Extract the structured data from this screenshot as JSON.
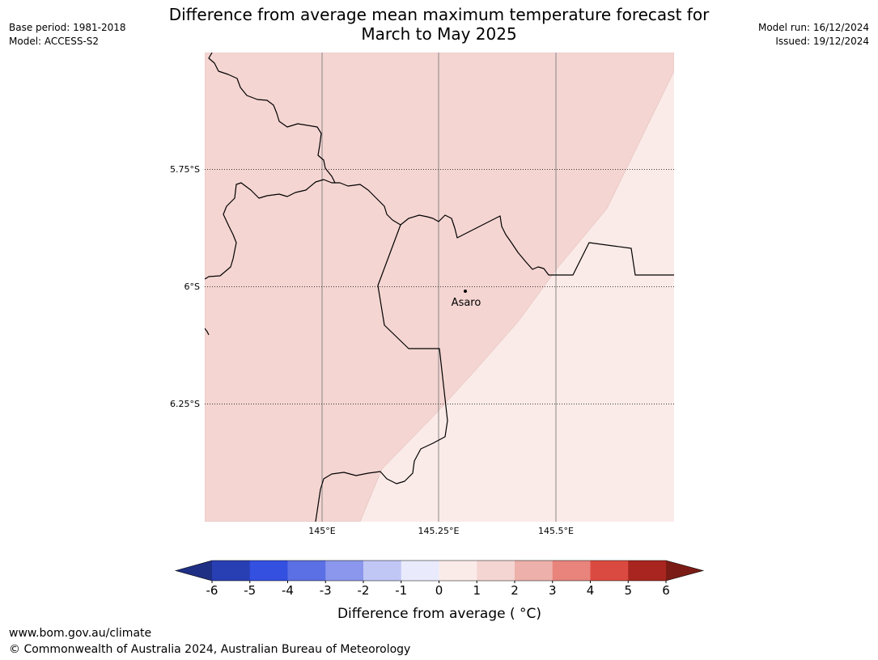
{
  "title": {
    "line1": "Difference from average mean maximum temperature forecast for",
    "line2": "March to May 2025"
  },
  "meta_left": {
    "base_period": "Base period: 1981-2018",
    "model": "Model: ACCESS-S2"
  },
  "meta_right": {
    "model_run": "Model run: 16/12/2024",
    "issued": "Issued: 19/12/2024"
  },
  "map": {
    "lat_labels": [
      "5.75°S",
      "6°S",
      "6.25°S"
    ],
    "lon_labels": [
      "145°E",
      "145.25°E",
      "145.5°E"
    ],
    "place": "Asaro",
    "colors": {
      "zone_0_1": "#fbebe8",
      "zone_1_2": "#f4d5d2",
      "gridline": "#888888",
      "border": "#000000"
    }
  },
  "colorbar": {
    "ticks": [
      "-6",
      "-5",
      "-4",
      "-3",
      "-2",
      "-1",
      "0",
      "1",
      "2",
      "3",
      "4",
      "5",
      "6"
    ],
    "colors": [
      "#1f2f84",
      "#283fb4",
      "#3450e0",
      "#5b70e4",
      "#8a97ec",
      "#c1c7f5",
      "#e9ebfc",
      "#fbebe8",
      "#f4d5d2",
      "#eeb0aa",
      "#e8847c",
      "#db4a40",
      "#a8261f",
      "#7a1c15"
    ],
    "label": "Difference from average ( °C)"
  },
  "footer": {
    "url": "www.bom.gov.au/climate",
    "copyright": "© Commonwealth of Australia 2024, Australian Bureau of Meteorology"
  }
}
